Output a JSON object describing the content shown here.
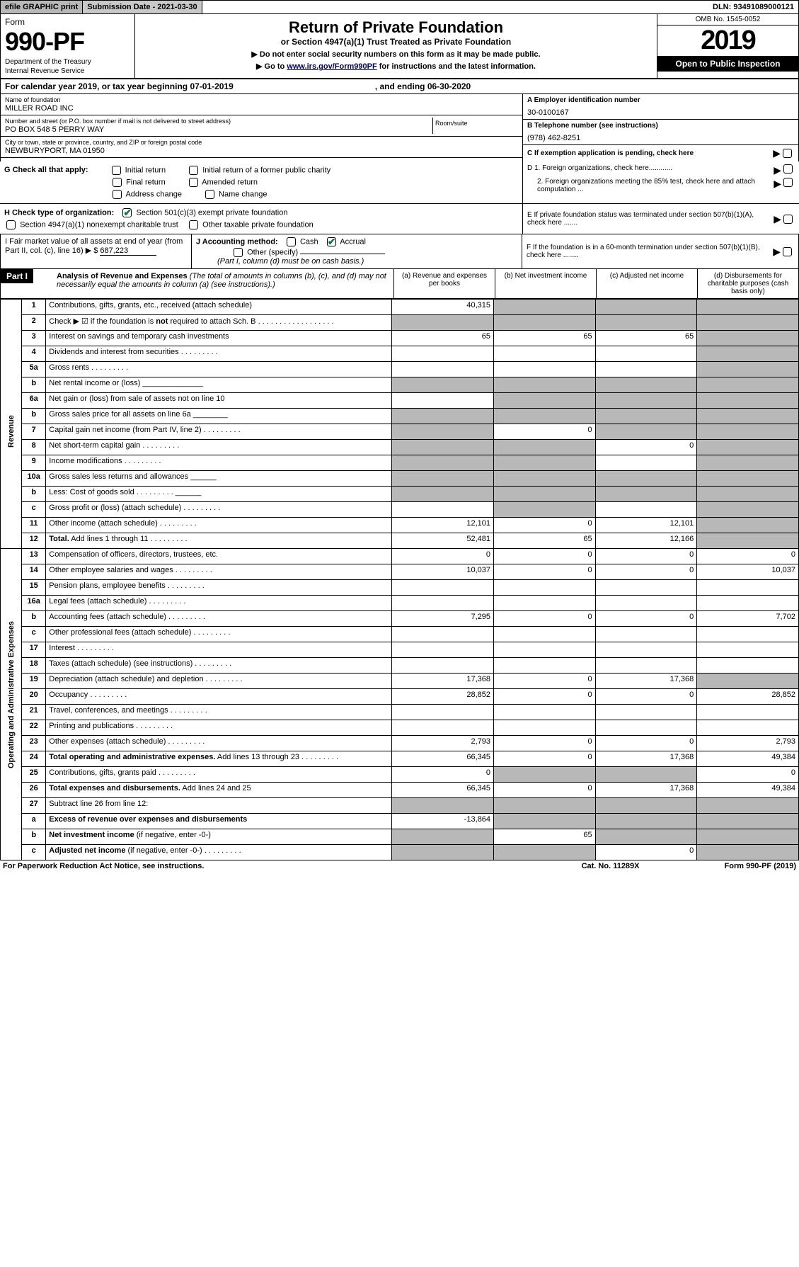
{
  "top": {
    "efile": "efile GRAPHIC print",
    "sub_date": "Submission Date - 2021-03-30",
    "dln": "DLN: 93491089000121"
  },
  "header": {
    "form_word": "Form",
    "form_no": "990-PF",
    "dept1": "Department of the Treasury",
    "dept2": "Internal Revenue Service",
    "title": "Return of Private Foundation",
    "subtitle": "or Section 4947(a)(1) Trust Treated as Private Foundation",
    "instr1": "▶ Do not enter social security numbers on this form as it may be made public.",
    "instr2_pre": "▶ Go to ",
    "instr2_link": "www.irs.gov/Form990PF",
    "instr2_post": " for instructions and the latest information.",
    "omb": "OMB No. 1545-0052",
    "year": "2019",
    "open": "Open to Public Inspection"
  },
  "cal": {
    "left": "For calendar year 2019, or tax year beginning 07-01-2019",
    "right": ", and ending 06-30-2020"
  },
  "entity": {
    "name_label": "Name of foundation",
    "name": "MILLER ROAD INC",
    "addr_label": "Number and street (or P.O. box number if mail is not delivered to street address)",
    "addr": "PO BOX 548 5 PERRY WAY",
    "room_label": "Room/suite",
    "city_label": "City or town, state or province, country, and ZIP or foreign postal code",
    "city": "NEWBURYPORT, MA  01950",
    "a_label": "A Employer identification number",
    "a_val": "30-0100167",
    "b_label": "B Telephone number (see instructions)",
    "b_val": "(978) 462-8251",
    "c_label": "C If exemption application is pending, check here"
  },
  "checks": {
    "g_label": "G Check all that apply:",
    "initial": "Initial return",
    "initial_former": "Initial return of a former public charity",
    "final": "Final return",
    "amended": "Amended return",
    "addr_change": "Address change",
    "name_change": "Name change",
    "d1": "D 1. Foreign organizations, check here............",
    "d2": "2. Foreign organizations meeting the 85% test, check here and attach computation ...",
    "e": "E  If private foundation status was terminated under section 507(b)(1)(A), check here .......",
    "h_label": "H Check type of organization:",
    "h_501c3": "Section 501(c)(3) exempt private foundation",
    "h_4947": "Section 4947(a)(1) nonexempt charitable trust",
    "h_other": "Other taxable private foundation",
    "i_label": "I Fair market value of all assets at end of year (from Part II, col. (c), line 16) ▶ $",
    "i_val": "687,223",
    "j_label": "J Accounting method:",
    "j_cash": "Cash",
    "j_accrual": "Accrual",
    "j_other": "Other (specify)",
    "j_note": "(Part I, column (d) must be on cash basis.)",
    "f": "F  If the foundation is in a 60-month termination under section 507(b)(1)(B), check here ........"
  },
  "part1": {
    "label": "Part I",
    "title": "Analysis of Revenue and Expenses",
    "note": "(The total of amounts in columns (b), (c), and (d) may not necessarily equal the amounts in column (a) (see instructions).)",
    "col_a": "(a)   Revenue and expenses per books",
    "col_b": "(b)  Net investment income",
    "col_c": "(c)  Adjusted net income",
    "col_d": "(d)  Disbursements for charitable purposes (cash basis only)"
  },
  "sides": {
    "revenue": "Revenue",
    "expenses": "Operating and Administrative Expenses"
  },
  "rows": [
    {
      "n": "1",
      "d": "Contributions, gifts, grants, etc., received (attach schedule)",
      "a": "40,315",
      "b": "",
      "c": "",
      "bs": true,
      "cs": true,
      "ds": true
    },
    {
      "n": "2",
      "d": "Check ▶ ☑ if the foundation is <b>not</b> required to attach Sch. B",
      "dsuffix": " . . . . . . . . . . . . . . . . . .",
      "a": "",
      "b": "",
      "c": "",
      "as": true,
      "bs": true,
      "cs": true,
      "ds": true
    },
    {
      "n": "3",
      "d": "Interest on savings and temporary cash investments",
      "a": "65",
      "b": "65",
      "c": "65",
      "ds": true
    },
    {
      "n": "4",
      "d": "Dividends and interest from securities",
      "dots": true,
      "a": "",
      "b": "",
      "c": "",
      "ds": true
    },
    {
      "n": "5a",
      "d": "Gross rents",
      "dots": true,
      "a": "",
      "b": "",
      "c": "",
      "ds": true
    },
    {
      "n": "b",
      "d": "Net rental income or (loss) ______________",
      "a": "",
      "b": "",
      "c": "",
      "as": true,
      "bs": true,
      "cs": true,
      "ds": true
    },
    {
      "n": "6a",
      "d": "Net gain or (loss) from sale of assets not on line 10",
      "a": "",
      "bs": true,
      "cs": true,
      "ds": true
    },
    {
      "n": "b",
      "d": "Gross sales price for all assets on line 6a ________",
      "as": true,
      "bs": true,
      "cs": true,
      "ds": true
    },
    {
      "n": "7",
      "d": "Capital gain net income (from Part IV, line 2)",
      "dots": true,
      "as": true,
      "b": "0",
      "cs": true,
      "ds": true
    },
    {
      "n": "8",
      "d": "Net short-term capital gain",
      "dots": true,
      "as": true,
      "bs": true,
      "c": "0",
      "ds": true
    },
    {
      "n": "9",
      "d": "Income modifications",
      "dots": true,
      "as": true,
      "bs": true,
      "c": "",
      "ds": true
    },
    {
      "n": "10a",
      "d": "Gross sales less returns and allowances   ______",
      "as": true,
      "bs": true,
      "cs": true,
      "ds": true
    },
    {
      "n": "b",
      "d": "Less: Cost of goods sold",
      "dots": true,
      "dsuffix": " ______",
      "as": true,
      "bs": true,
      "cs": true,
      "ds": true
    },
    {
      "n": "c",
      "d": "Gross profit or (loss) (attach schedule)",
      "dots": true,
      "a": "",
      "bs": true,
      "c": "",
      "ds": true
    },
    {
      "n": "11",
      "d": "Other income (attach schedule)",
      "dots": true,
      "a": "12,101",
      "b": "0",
      "c": "12,101",
      "ds": true
    },
    {
      "n": "12",
      "d": "<b>Total.</b> Add lines 1 through 11",
      "dots": true,
      "a": "52,481",
      "b": "65",
      "c": "12,166",
      "ds": true
    },
    {
      "n": "13",
      "d": "Compensation of officers, directors, trustees, etc.",
      "a": "0",
      "b": "0",
      "c": "0",
      "dd": "0"
    },
    {
      "n": "14",
      "d": "Other employee salaries and wages",
      "dots": true,
      "a": "10,037",
      "b": "0",
      "c": "0",
      "dd": "10,037"
    },
    {
      "n": "15",
      "d": "Pension plans, employee benefits",
      "dots": true,
      "a": "",
      "b": "",
      "c": "",
      "dd": ""
    },
    {
      "n": "16a",
      "d": "Legal fees (attach schedule)",
      "dots": true,
      "a": "",
      "b": "",
      "c": "",
      "dd": ""
    },
    {
      "n": "b",
      "d": "Accounting fees (attach schedule)",
      "dots": true,
      "a": "7,295",
      "b": "0",
      "c": "0",
      "dd": "7,702"
    },
    {
      "n": "c",
      "d": "Other professional fees (attach schedule)",
      "dots": true,
      "a": "",
      "b": "",
      "c": "",
      "dd": ""
    },
    {
      "n": "17",
      "d": "Interest",
      "dots": true,
      "a": "",
      "b": "",
      "c": "",
      "dd": ""
    },
    {
      "n": "18",
      "d": "Taxes (attach schedule) (see instructions)",
      "dots": true,
      "a": "",
      "b": "",
      "c": "",
      "dd": ""
    },
    {
      "n": "19",
      "d": "Depreciation (attach schedule) and depletion",
      "dots": true,
      "a": "17,368",
      "b": "0",
      "c": "17,368",
      "ds": true
    },
    {
      "n": "20",
      "d": "Occupancy",
      "dots": true,
      "a": "28,852",
      "b": "0",
      "c": "0",
      "dd": "28,852"
    },
    {
      "n": "21",
      "d": "Travel, conferences, and meetings",
      "dots": true,
      "a": "",
      "b": "",
      "c": "",
      "dd": ""
    },
    {
      "n": "22",
      "d": "Printing and publications",
      "dots": true,
      "a": "",
      "b": "",
      "c": "",
      "dd": ""
    },
    {
      "n": "23",
      "d": "Other expenses (attach schedule)",
      "dots": true,
      "a": "2,793",
      "b": "0",
      "c": "0",
      "dd": "2,793"
    },
    {
      "n": "24",
      "d": "<b>Total operating and administrative expenses.</b> Add lines 13 through 23",
      "dots": true,
      "a": "66,345",
      "b": "0",
      "c": "17,368",
      "dd": "49,384"
    },
    {
      "n": "25",
      "d": "Contributions, gifts, grants paid",
      "dots": true,
      "a": "0",
      "bs": true,
      "cs": true,
      "dd": "0"
    },
    {
      "n": "26",
      "d": "<b>Total expenses and disbursements.</b> Add lines 24 and 25",
      "a": "66,345",
      "b": "0",
      "c": "17,368",
      "dd": "49,384"
    },
    {
      "n": "27",
      "d": "Subtract line 26 from line 12:",
      "as": true,
      "bs": true,
      "cs": true,
      "ds": true
    },
    {
      "n": "a",
      "d": "<b>Excess of revenue over expenses and disbursements</b>",
      "a": "-13,864",
      "bs": true,
      "cs": true,
      "ds": true
    },
    {
      "n": "b",
      "d": "<b>Net investment income</b> (if negative, enter -0-)",
      "as": true,
      "b": "65",
      "cs": true,
      "ds": true
    },
    {
      "n": "c",
      "d": "<b>Adjusted net income</b> (if negative, enter -0-)",
      "dots": true,
      "as": true,
      "bs": true,
      "c": "0",
      "ds": true
    }
  ],
  "footer": {
    "left": "For Paperwork Reduction Act Notice, see instructions.",
    "mid": "Cat. No. 11289X",
    "right": "Form 990-PF (2019)"
  },
  "colors": {
    "shade": "#b8b8b8",
    "green": "#0a7a3a",
    "link": "#000088"
  }
}
